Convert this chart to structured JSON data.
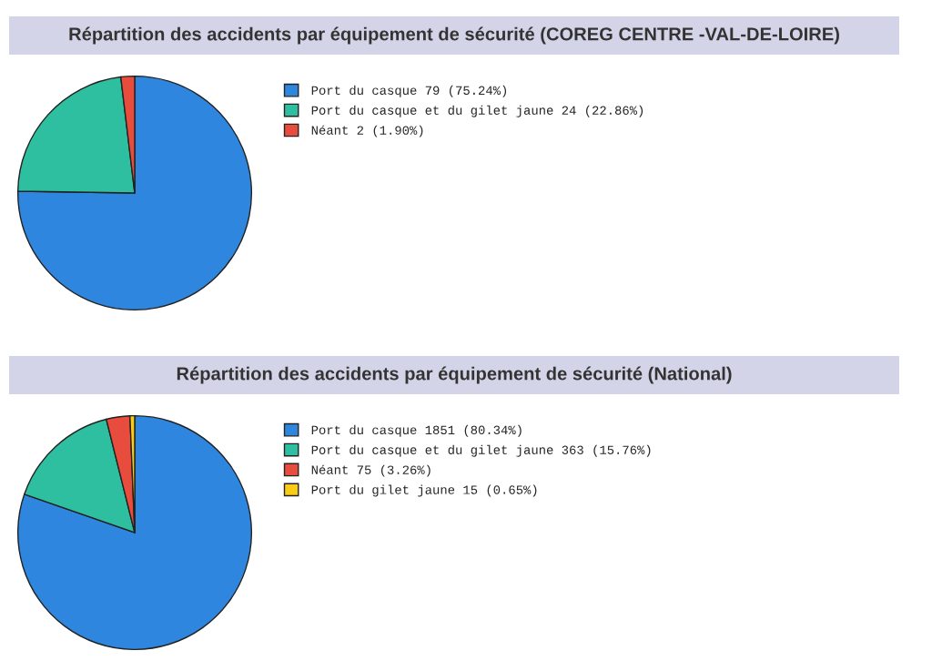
{
  "chart_data": [
    {
      "type": "pie",
      "title": "Répartition des accidents par équipement de sécurité (COREG CENTRE -VAL-DE-LOIRE)",
      "categories": [
        "Port du casque 79 (75.24%)",
        "Port du casque et du gilet jaune 24 (22.86%)",
        "Néant 2 (1.90%)"
      ],
      "values": [
        75.24,
        22.86,
        1.9
      ],
      "colors": [
        "#2e86de",
        "#2ebfa0",
        "#e74c3c"
      ],
      "legend": "right"
    },
    {
      "type": "pie",
      "title": "Répartition des accidents par équipement de sécurité (National)",
      "categories": [
        "Port du casque 1851 (80.34%)",
        "Port du casque et du gilet jaune 363 (15.76%)",
        "Néant 75 (3.26%)",
        "Port du gilet jaune 15 (0.65%)"
      ],
      "values": [
        80.34,
        15.76,
        3.26,
        0.65
      ],
      "colors": [
        "#2e86de",
        "#2ebfa0",
        "#e74c3c",
        "#f9cc16"
      ],
      "legend": "right"
    }
  ]
}
